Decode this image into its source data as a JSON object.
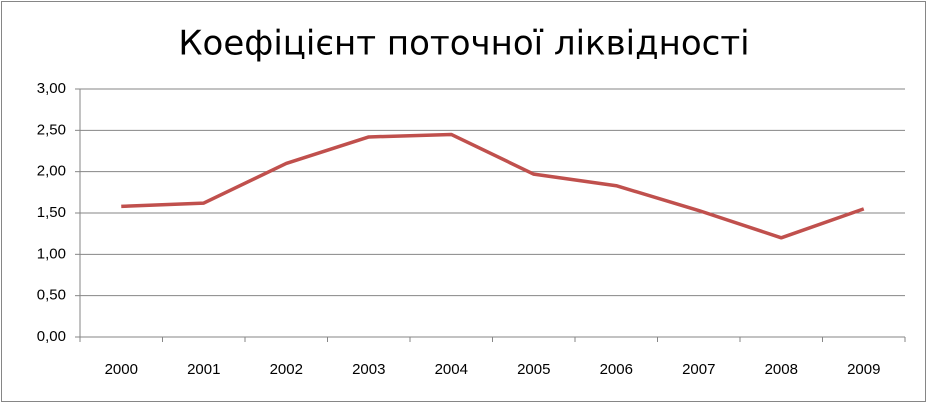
{
  "chart_data": {
    "type": "line",
    "title": "Коефіцієнт поточної ліквідності",
    "categories": [
      "2000",
      "2001",
      "2002",
      "2003",
      "2004",
      "2005",
      "2006",
      "2007",
      "2008",
      "2009"
    ],
    "values": [
      1.58,
      1.62,
      2.1,
      2.42,
      2.45,
      1.97,
      1.83,
      1.53,
      1.2,
      1.55
    ],
    "color": "#c0504d",
    "ylim": [
      0,
      3
    ],
    "yticks": [
      {
        "value": 0,
        "label": "0,00"
      },
      {
        "value": 0.5,
        "label": "0,50"
      },
      {
        "value": 1,
        "label": "1,00"
      },
      {
        "value": 1.5,
        "label": "1,50"
      },
      {
        "value": 2,
        "label": "2,00"
      },
      {
        "value": 2.5,
        "label": "2,50"
      },
      {
        "value": 3,
        "label": "3,00"
      }
    ],
    "grid": true
  }
}
